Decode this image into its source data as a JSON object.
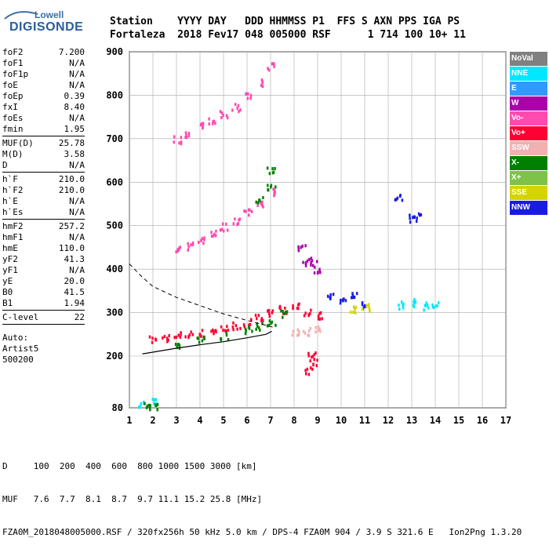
{
  "logo": {
    "line1": "Lowell",
    "line2": "DIGISONDE"
  },
  "header": {
    "labels": "Station    YYYY DAY   DDD HHMMSS P1  FFS S AXN PPS IGA PS",
    "values": "Fortaleza  2018 Fev17 048 005000 RSF      1 714 100 10+ 11"
  },
  "params": {
    "group1": [
      {
        "label": "foF2",
        "value": "7.200"
      },
      {
        "label": "foF1",
        "value": "N/A"
      },
      {
        "label": "foF1p",
        "value": "N/A"
      },
      {
        "label": "foE",
        "value": "N/A"
      },
      {
        "label": "foEp",
        "value": "0.39"
      },
      {
        "label": "fxI",
        "value": "8.40"
      },
      {
        "label": "foEs",
        "value": "N/A"
      },
      {
        "label": "fmin",
        "value": "1.95"
      }
    ],
    "group2": [
      {
        "label": "MUF(D)",
        "value": "25.78"
      },
      {
        "label": "M(D)",
        "value": "3.58"
      },
      {
        "label": "D",
        "value": "N/A"
      }
    ],
    "group3": [
      {
        "label": "h`F",
        "value": "210.0"
      },
      {
        "label": "h`F2",
        "value": "210.0"
      },
      {
        "label": "h`E",
        "value": "N/A"
      },
      {
        "label": "h`Es",
        "value": "N/A"
      }
    ],
    "group4": [
      {
        "label": "hmF2",
        "value": "257.2"
      },
      {
        "label": "hmF1",
        "value": "N/A"
      },
      {
        "label": "hmE",
        "value": "110.0"
      },
      {
        "label": "yF2",
        "value": "41.3"
      },
      {
        "label": "yF1",
        "value": "N/A"
      },
      {
        "label": "yE",
        "value": "20.0"
      },
      {
        "label": "B0",
        "value": "41.5"
      },
      {
        "label": "B1",
        "value": "1.94"
      }
    ],
    "group5": [
      {
        "label": "C-level",
        "value": "22"
      }
    ],
    "auto": [
      "Auto:",
      "Artist5",
      "500200"
    ]
  },
  "legend": [
    {
      "label": "NoVal",
      "color": "#808080"
    },
    {
      "label": "NNE",
      "color": "#00e8ff"
    },
    {
      "label": "E",
      "color": "#3399ff"
    },
    {
      "label": "W",
      "color": "#aa00aa"
    },
    {
      "label": "Vo-",
      "color": "#ff4ab0"
    },
    {
      "label": "Vo+",
      "color": "#ff0033"
    },
    {
      "label": "SSW",
      "color": "#f2b0b0"
    },
    {
      "label": "X-",
      "color": "#008000"
    },
    {
      "label": "X+",
      "color": "#7fc24a"
    },
    {
      "label": "SSE",
      "color": "#d4d400"
    },
    {
      "label": "NNW",
      "color": "#1a1ae6"
    }
  ],
  "footer": {
    "line1": "D     100  200  400  600  800 1000 1500 3000 [km]",
    "line2": "MUF   7.6  7.7  8.1  8.7  9.7 11.1 15.2 25.8 [MHz]",
    "line3": "FZA0M_2018048005000.RSF / 320fx256h 50 kHz 5.0 km / DPS-4 FZA0M 904 / 3.9 S 321.6 E   Ion2Png 1.3.20"
  },
  "chart_data": {
    "type": "scatter",
    "xlim": [
      1,
      17
    ],
    "ylim": [
      80,
      900
    ],
    "x_ticks": [
      "1",
      "2",
      "3",
      "4",
      "5",
      "6",
      "7",
      "8",
      "9",
      "10",
      "11",
      "12",
      "13",
      "14",
      "15",
      "16",
      "17"
    ],
    "y_ticks": [
      "80",
      "200",
      "300",
      "400",
      "500",
      "600",
      "700",
      "800",
      "900"
    ],
    "grid": true,
    "legend_placement": "right",
    "series": [
      {
        "color_key": "profile",
        "line": [
          [
            1.55,
            205
          ],
          [
            2,
            209
          ],
          [
            3,
            218
          ],
          [
            4,
            226
          ],
          [
            5,
            233
          ],
          [
            6,
            242
          ],
          [
            6.8,
            250
          ],
          [
            7.05,
            257
          ]
        ]
      },
      {
        "color_key": "density",
        "line": [
          [
            1,
            412
          ],
          [
            1.5,
            384
          ],
          [
            2,
            360
          ],
          [
            3,
            335
          ],
          [
            4,
            316
          ],
          [
            5,
            297
          ],
          [
            6,
            282
          ],
          [
            7,
            268
          ],
          [
            7.2,
            265
          ]
        ]
      }
    ],
    "clusters": [
      {
        "color_key": "Vo+",
        "points": [
          [
            2,
            240
          ],
          [
            2.5,
            245
          ],
          [
            3,
            250
          ],
          [
            3.5,
            252
          ],
          [
            4,
            255
          ],
          [
            4.5,
            260
          ],
          [
            5,
            265
          ],
          [
            5.5,
            272
          ],
          [
            6,
            280
          ],
          [
            6.5,
            290
          ],
          [
            7,
            300
          ],
          [
            7.5,
            310
          ],
          [
            8,
            315
          ],
          [
            8.5,
            300
          ],
          [
            9,
            295
          ]
        ]
      },
      {
        "color_key": "X-",
        "points": [
          [
            3,
            230
          ],
          [
            4,
            240
          ],
          [
            5,
            250
          ],
          [
            6,
            262
          ],
          [
            6.5,
            270
          ],
          [
            7,
            282
          ],
          [
            7.5,
            300
          ]
        ]
      },
      {
        "color_key": "Vo-",
        "points": [
          [
            3,
            445
          ],
          [
            3.5,
            455
          ],
          [
            4,
            470
          ],
          [
            4.5,
            485
          ],
          [
            5,
            500
          ],
          [
            5.5,
            515
          ],
          [
            6,
            535
          ],
          [
            6.5,
            555
          ],
          [
            7,
            580
          ]
        ]
      },
      {
        "color_key": "Vo-",
        "points": [
          [
            3,
            700
          ],
          [
            3.5,
            715
          ],
          [
            4,
            730
          ],
          [
            4.5,
            745
          ],
          [
            5,
            760
          ],
          [
            5.5,
            775
          ],
          [
            6,
            800
          ],
          [
            6.5,
            830
          ],
          [
            7,
            870
          ]
        ]
      },
      {
        "color_key": "NNW",
        "points": [
          [
            9.5,
            340
          ],
          [
            10,
            330
          ],
          [
            10.5,
            345
          ],
          [
            11,
            320
          ]
        ]
      },
      {
        "color_key": "SSE",
        "points": [
          [
            10.5,
            310
          ],
          [
            11,
            315
          ]
        ]
      },
      {
        "color_key": "NNE",
        "points": [
          [
            12.5,
            320
          ],
          [
            13,
            325
          ],
          [
            13.5,
            318
          ],
          [
            14,
            320
          ]
        ]
      },
      {
        "color_key": "X-",
        "points": [
          [
            6.5,
            560
          ],
          [
            7,
            590
          ],
          [
            7,
            630
          ]
        ]
      },
      {
        "color_key": "SSW",
        "points": [
          [
            8,
            260
          ],
          [
            8.5,
            258
          ],
          [
            9,
            262
          ]
        ]
      },
      {
        "color_key": "Vo+",
        "points": [
          [
            8.7,
            210
          ],
          [
            8.8,
            190
          ],
          [
            8.6,
            170
          ]
        ]
      },
      {
        "color_key": "NNE",
        "points": [
          [
            1.5,
            90
          ],
          [
            2,
            95
          ]
        ]
      },
      {
        "color_key": "X-",
        "points": [
          [
            1.7,
            85
          ],
          [
            2,
            88
          ]
        ]
      },
      {
        "color_key": "W",
        "points": [
          [
            8.3,
            450
          ],
          [
            8.5,
            420
          ],
          [
            8.8,
            420
          ],
          [
            9,
            400
          ]
        ]
      },
      {
        "color_key": "NNW",
        "points": [
          [
            12.4,
            570
          ],
          [
            13,
            520
          ],
          [
            13.2,
            525
          ]
        ]
      }
    ]
  }
}
